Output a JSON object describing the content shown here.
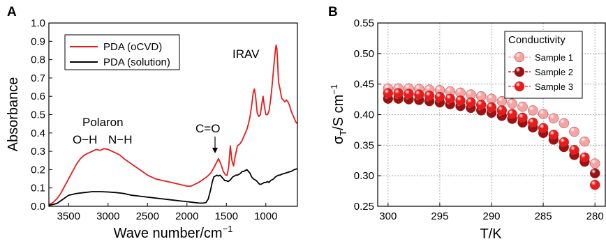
{
  "panel_labels": [
    "A",
    "B"
  ],
  "colors": {
    "oCVD": "#e51b1b",
    "solution": "#000000",
    "sample1": "#f5a3a3",
    "sample2": "#9c1212",
    "sample3": "#e81c1c"
  },
  "chart_data": [
    {
      "type": "line",
      "panel": "A",
      "xlabel": "Wave number/cm",
      "xlabel_sup": "−1",
      "ylabel": "Absorbance",
      "xlim": [
        3750,
        600
      ],
      "ylim": [
        0.0,
        1.0
      ],
      "x_reversed": true,
      "xticks": [
        3500,
        3000,
        2500,
        2000,
        1500,
        1000
      ],
      "yticks": [
        "0.0",
        "0.1",
        "0.2",
        "0.3",
        "0.4",
        "0.5",
        "0.6",
        "0.7",
        "0.8",
        "0.9",
        "1.0"
      ],
      "legend": {
        "position": "top-left",
        "entries": [
          "PDA (oCVD)",
          "PDA (solution)"
        ]
      },
      "annotations": [
        "Polaron",
        "O−H",
        "N−H",
        "C=O",
        "IRAV"
      ],
      "series": [
        {
          "name": "PDA (oCVD)",
          "color": "#e51b1b",
          "x": [
            3750,
            3700,
            3650,
            3600,
            3550,
            3500,
            3450,
            3400,
            3350,
            3300,
            3250,
            3200,
            3150,
            3100,
            3050,
            3000,
            2950,
            2900,
            2850,
            2800,
            2700,
            2600,
            2500,
            2400,
            2300,
            2200,
            2100,
            2000,
            1950,
            1900,
            1850,
            1800,
            1750,
            1700,
            1660,
            1630,
            1600,
            1570,
            1540,
            1510,
            1490,
            1470,
            1450,
            1430,
            1410,
            1390,
            1360,
            1330,
            1300,
            1280,
            1260,
            1240,
            1220,
            1200,
            1180,
            1160,
            1145,
            1130,
            1110,
            1090,
            1070,
            1050,
            1035,
            1020,
            1000,
            980,
            960,
            940,
            920,
            900,
            880,
            870,
            860,
            850,
            840,
            820,
            800,
            780,
            760,
            740,
            720,
            700,
            680,
            660,
            640,
            620,
            600
          ],
          "y": [
            0.01,
            0.02,
            0.04,
            0.07,
            0.11,
            0.15,
            0.19,
            0.23,
            0.26,
            0.28,
            0.29,
            0.3,
            0.31,
            0.305,
            0.315,
            0.31,
            0.3,
            0.29,
            0.28,
            0.26,
            0.23,
            0.2,
            0.17,
            0.15,
            0.14,
            0.13,
            0.12,
            0.11,
            0.11,
            0.12,
            0.13,
            0.145,
            0.16,
            0.18,
            0.21,
            0.235,
            0.26,
            0.23,
            0.19,
            0.17,
            0.17,
            0.22,
            0.33,
            0.25,
            0.22,
            0.27,
            0.33,
            0.34,
            0.36,
            0.38,
            0.4,
            0.42,
            0.45,
            0.49,
            0.55,
            0.62,
            0.64,
            0.6,
            0.51,
            0.49,
            0.5,
            0.56,
            0.6,
            0.55,
            0.5,
            0.5,
            0.52,
            0.58,
            0.66,
            0.76,
            0.85,
            0.88,
            0.86,
            0.78,
            0.68,
            0.64,
            0.59,
            0.58,
            0.57,
            0.58,
            0.57,
            0.55,
            0.52,
            0.5,
            0.48,
            0.46,
            0.45
          ]
        },
        {
          "name": "PDA (solution)",
          "color": "#000000",
          "x": [
            3750,
            3700,
            3650,
            3600,
            3550,
            3500,
            3400,
            3300,
            3200,
            3100,
            3000,
            2900,
            2800,
            2700,
            2600,
            2500,
            2400,
            2300,
            2200,
            2100,
            2000,
            1900,
            1850,
            1800,
            1760,
            1730,
            1700,
            1680,
            1660,
            1640,
            1620,
            1600,
            1580,
            1560,
            1540,
            1520,
            1500,
            1480,
            1460,
            1440,
            1420,
            1400,
            1380,
            1360,
            1340,
            1320,
            1300,
            1280,
            1260,
            1240,
            1220,
            1200,
            1180,
            1160,
            1140,
            1120,
            1100,
            1080,
            1060,
            1040,
            1020,
            1000,
            980,
            960,
            940,
            920,
            900,
            880,
            860,
            840,
            820,
            800,
            760,
            720,
            680,
            640,
            600
          ],
          "y": [
            0.005,
            0.01,
            0.015,
            0.03,
            0.045,
            0.06,
            0.07,
            0.075,
            0.08,
            0.08,
            0.078,
            0.075,
            0.07,
            0.06,
            0.055,
            0.05,
            0.045,
            0.04,
            0.035,
            0.03,
            0.025,
            0.02,
            0.018,
            0.017,
            0.02,
            0.04,
            0.09,
            0.13,
            0.16,
            0.165,
            0.17,
            0.165,
            0.17,
            0.16,
            0.15,
            0.14,
            0.14,
            0.135,
            0.14,
            0.15,
            0.16,
            0.165,
            0.17,
            0.17,
            0.175,
            0.18,
            0.19,
            0.19,
            0.195,
            0.2,
            0.19,
            0.18,
            0.16,
            0.15,
            0.145,
            0.14,
            0.13,
            0.12,
            0.12,
            0.125,
            0.13,
            0.13,
            0.135,
            0.13,
            0.14,
            0.145,
            0.15,
            0.16,
            0.165,
            0.17,
            0.17,
            0.175,
            0.18,
            0.185,
            0.19,
            0.2,
            0.205
          ]
        }
      ]
    },
    {
      "type": "scatter",
      "panel": "B",
      "xlabel": "T/K",
      "ylabel_main": "σ",
      "ylabel_sub": "T",
      "ylabel_rest": "/S cm",
      "ylabel_sup": "−1",
      "xlim": [
        301,
        279
      ],
      "ylim": [
        0.25,
        0.55
      ],
      "x_reversed": true,
      "xticks": [
        300,
        295,
        290,
        285,
        280
      ],
      "yticks": [
        "0.25",
        "0.30",
        "0.35",
        "0.40",
        "0.45",
        "0.50",
        "0.55"
      ],
      "grid": true,
      "legend": {
        "position": "top-right",
        "title": "Conductivity",
        "entries": [
          "Sample 1",
          "Sample 2",
          "Sample 3"
        ]
      },
      "series": [
        {
          "name": "Sample 1",
          "color": "#f5a3a3",
          "x": [
            300,
            299,
            298,
            297,
            296,
            295,
            294,
            293,
            292,
            291,
            290,
            289,
            288,
            287,
            286,
            285,
            284,
            283,
            282,
            281,
            280
          ],
          "y": [
            0.443,
            0.443,
            0.443,
            0.442,
            0.441,
            0.44,
            0.438,
            0.436,
            0.433,
            0.43,
            0.426,
            0.422,
            0.418,
            0.413,
            0.407,
            0.401,
            0.394,
            0.386,
            0.372,
            0.356,
            0.32
          ]
        },
        {
          "name": "Sample 2",
          "color": "#9c1212",
          "x": [
            300,
            299,
            298,
            297,
            296,
            295,
            294,
            293,
            292,
            291,
            290,
            289,
            288,
            287,
            286,
            285,
            284,
            283,
            282,
            281,
            280
          ],
          "y": [
            0.426,
            0.426,
            0.425,
            0.424,
            0.422,
            0.42,
            0.417,
            0.414,
            0.411,
            0.407,
            0.403,
            0.398,
            0.393,
            0.387,
            0.379,
            0.37,
            0.359,
            0.347,
            0.334,
            0.323,
            0.304
          ]
        },
        {
          "name": "Sample 3",
          "color": "#e81c1c",
          "x": [
            300,
            299,
            298,
            297,
            296,
            295,
            294,
            293,
            292,
            291,
            290,
            289,
            288,
            287,
            286,
            285,
            284,
            283,
            282,
            281,
            280
          ],
          "y": [
            0.435,
            0.435,
            0.434,
            0.433,
            0.431,
            0.429,
            0.426,
            0.423,
            0.42,
            0.416,
            0.412,
            0.407,
            0.401,
            0.395,
            0.387,
            0.378,
            0.367,
            0.355,
            0.342,
            0.33,
            0.285
          ]
        }
      ]
    }
  ]
}
